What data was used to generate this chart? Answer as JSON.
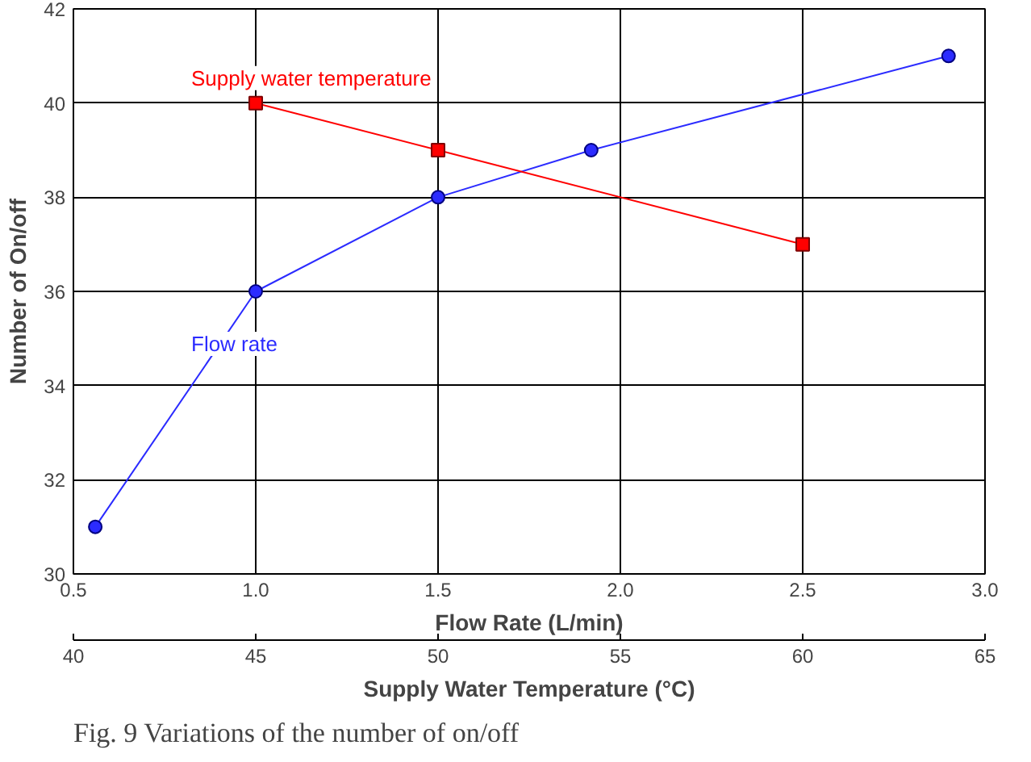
{
  "chart_data": {
    "type": "line",
    "xlabel": "Flow Rate (L/min)",
    "x2label": "Supply Water Temperature (°C)",
    "ylabel": "Number of On/off",
    "xlim": [
      0.5,
      3.0
    ],
    "xticks": [
      {
        "value": 0.5,
        "label": "0.5"
      },
      {
        "value": 1.0,
        "label": "1.0"
      },
      {
        "value": 1.5,
        "label": "1.5"
      },
      {
        "value": 2.0,
        "label": "2.0"
      },
      {
        "value": 2.5,
        "label": "2.5"
      },
      {
        "value": 3.0,
        "label": "3.0"
      }
    ],
    "x2lim": [
      40,
      65
    ],
    "x2ticks": [
      40,
      45,
      50,
      55,
      60,
      65
    ],
    "ylim": [
      30,
      42
    ],
    "yticks": [
      30,
      32,
      34,
      36,
      38,
      40,
      42
    ],
    "series": [
      {
        "name": "Flow rate",
        "color": "#2b2bff",
        "marker": "circle",
        "x": [
          0.56,
          1.0,
          1.5,
          1.92,
          2.9
        ],
        "values": [
          31,
          36,
          38,
          39,
          41
        ]
      },
      {
        "name": "Supply water temperature",
        "color": "#ff0000",
        "marker": "square",
        "axis": "x2",
        "x": [
          45,
          50,
          60
        ],
        "values": [
          40,
          39,
          37
        ]
      }
    ],
    "grid": true,
    "line_style": "solid",
    "annotations": [
      "Fig. 9  Variations of the number of on/off"
    ]
  }
}
